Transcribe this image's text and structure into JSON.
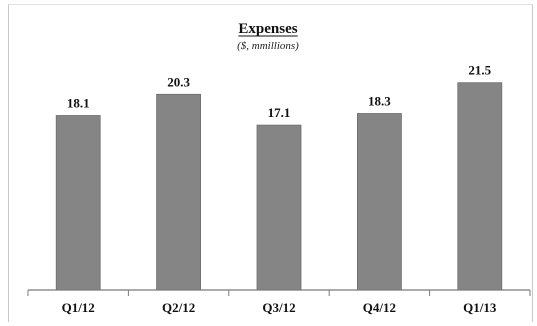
{
  "chart_data": {
    "type": "bar",
    "title": "Expenses",
    "subtitle": "($, mmillions)",
    "categories": [
      "Q1/12",
      "Q2/12",
      "Q3/12",
      "Q4/12",
      "Q1/13"
    ],
    "values": [
      18.1,
      20.3,
      17.1,
      18.3,
      21.5
    ],
    "data_labels": [
      "18.1",
      "20.3",
      "17.1",
      "18.3",
      "21.5"
    ],
    "xlabel": "",
    "ylabel": "",
    "ylim": [
      0,
      28
    ],
    "grid": false,
    "legend": "none",
    "colors": {
      "bar": "#858585",
      "bar_edge": "#6e6e6e",
      "axis": "#7a7a7a"
    }
  }
}
